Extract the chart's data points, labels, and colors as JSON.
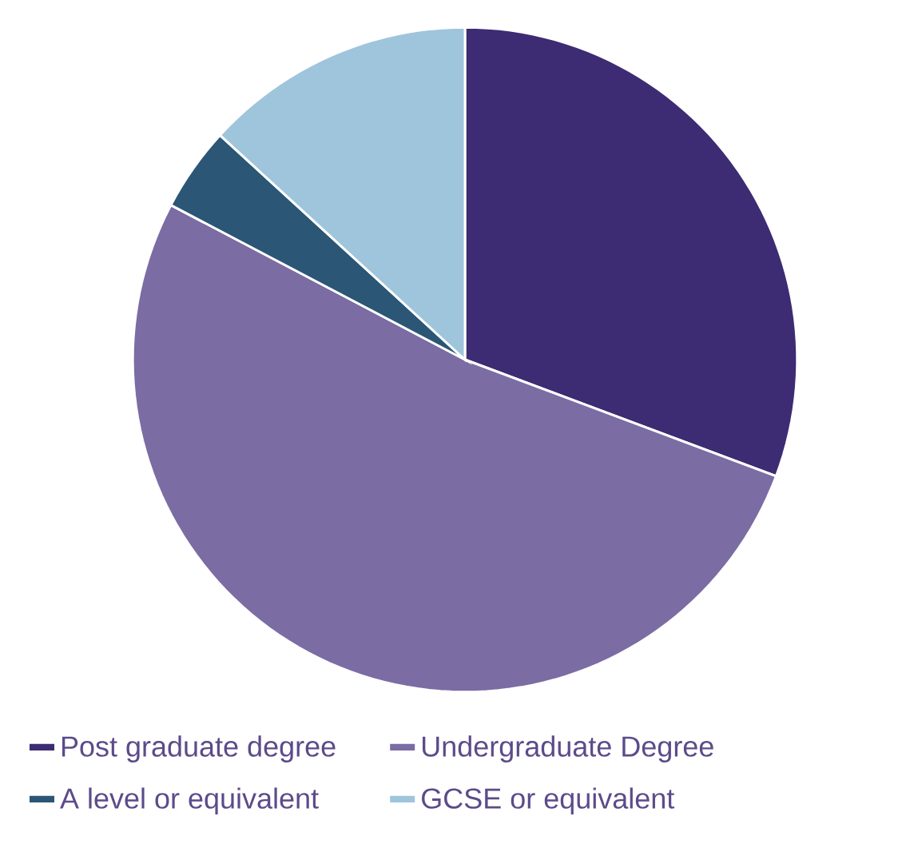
{
  "chart_data": {
    "type": "pie",
    "categories": [
      "Post graduate degree",
      "Undergraduate Degree",
      "A level or equivalent",
      "GCSE or equivalent"
    ],
    "values": [
      30.7,
      52.0,
      4.1,
      13.2
    ],
    "colors": [
      "#3d2b73",
      "#7b6ca3",
      "#2b5675",
      "#9fc5dc"
    ],
    "legend": "bottom"
  }
}
